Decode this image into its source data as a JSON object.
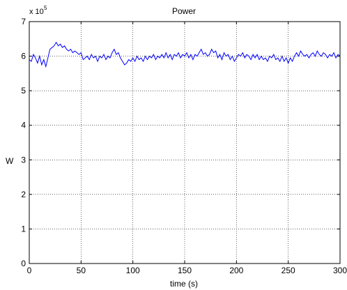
{
  "chart_data": {
    "type": "line",
    "title": "Power",
    "xlabel": "time (s)",
    "ylabel": "W",
    "y_multiplier_label": "x 10",
    "y_multiplier_exponent": "5",
    "xlim": [
      0,
      300
    ],
    "ylim": [
      0,
      7
    ],
    "x_ticks": [
      0,
      50,
      100,
      150,
      200,
      250,
      300
    ],
    "y_ticks": [
      0,
      1,
      2,
      3,
      4,
      5,
      6,
      7
    ],
    "grid": true,
    "line_color": "#0000ff",
    "series": [
      {
        "x": [
          0,
          2,
          4,
          6,
          8,
          10,
          12,
          14,
          16,
          18,
          20,
          22,
          24,
          26,
          28,
          30,
          32,
          34,
          36,
          38,
          40,
          42,
          44,
          46,
          48,
          50,
          52,
          54,
          56,
          58,
          60,
          62,
          64,
          66,
          68,
          70,
          72,
          74,
          76,
          78,
          80,
          82,
          84,
          86,
          88,
          90,
          92,
          94,
          96,
          98,
          100,
          102,
          104,
          106,
          108,
          110,
          112,
          114,
          116,
          118,
          120,
          122,
          124,
          126,
          128,
          130,
          132,
          134,
          136,
          138,
          140,
          142,
          144,
          146,
          148,
          150,
          152,
          154,
          156,
          158,
          160,
          162,
          164,
          166,
          168,
          170,
          172,
          174,
          176,
          178,
          180,
          182,
          184,
          186,
          188,
          190,
          192,
          194,
          196,
          198,
          200,
          202,
          204,
          206,
          208,
          210,
          212,
          214,
          216,
          218,
          220,
          222,
          224,
          226,
          228,
          230,
          232,
          234,
          236,
          238,
          240,
          242,
          244,
          246,
          248,
          250,
          252,
          254,
          256,
          258,
          260,
          262,
          264,
          266,
          268,
          270,
          272,
          274,
          276,
          278,
          280,
          282,
          284,
          286,
          288,
          290,
          292,
          294,
          296,
          298,
          300
        ],
        "values": [
          5.9,
          5.85,
          6.05,
          5.95,
          5.8,
          6.0,
          5.75,
          5.9,
          5.7,
          5.95,
          6.2,
          6.25,
          6.3,
          6.4,
          6.3,
          6.35,
          6.25,
          6.3,
          6.2,
          6.15,
          6.2,
          6.1,
          6.15,
          6.1,
          6.05,
          6.1,
          5.9,
          5.95,
          6.0,
          5.9,
          6.05,
          5.95,
          6.0,
          5.85,
          6.0,
          5.95,
          6.05,
          5.9,
          6.0,
          5.95,
          6.1,
          6.2,
          6.05,
          6.1,
          5.95,
          5.85,
          5.75,
          5.8,
          5.9,
          5.85,
          5.95,
          5.85,
          6.0,
          5.9,
          5.95,
          5.85,
          6.0,
          5.9,
          6.0,
          5.95,
          6.05,
          5.9,
          6.0,
          5.95,
          6.05,
          5.95,
          6.1,
          5.95,
          6.05,
          5.9,
          6.05,
          6.0,
          6.1,
          5.95,
          6.05,
          6.0,
          6.1,
          5.95,
          6.05,
          5.9,
          6.05,
          6.0,
          6.1,
          6.2,
          6.05,
          6.1,
          6.0,
          6.05,
          6.2,
          6.1,
          6.15,
          5.95,
          6.05,
          5.9,
          6.1,
          6.0,
          6.05,
          5.9,
          6.0,
          5.85,
          5.95,
          6.05,
          6.0,
          6.1,
          5.95,
          6.05,
          6.0,
          5.9,
          6.05,
          5.95,
          6.05,
          5.9,
          6.0,
          5.9,
          5.95,
          5.85,
          6.0,
          5.95,
          6.05,
          5.9,
          5.95,
          5.85,
          6.0,
          5.85,
          5.95,
          5.8,
          5.95,
          5.85,
          6.0,
          6.1,
          6.0,
          6.15,
          6.05,
          6.0,
          6.05,
          5.95,
          6.05,
          6.1,
          6.0,
          6.15,
          6.05,
          6.0,
          6.1,
          6.05,
          5.95,
          6.05,
          6.0,
          6.1,
          5.95,
          6.05,
          6.0
        ]
      }
    ]
  }
}
